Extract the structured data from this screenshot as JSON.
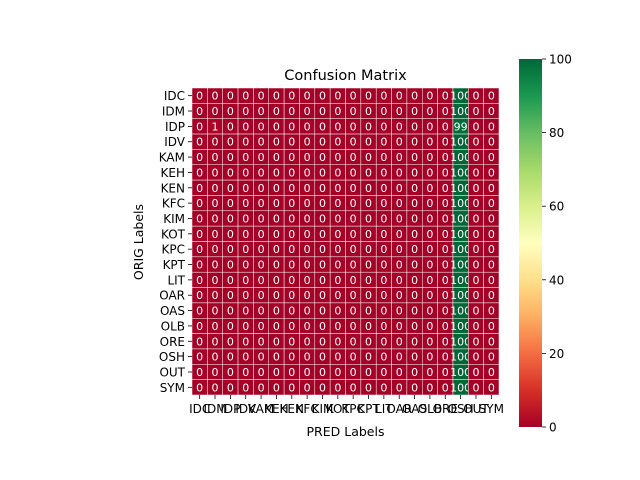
{
  "chart_data": {
    "type": "heatmap",
    "title": "Confusion Matrix",
    "xlabel": "PRED Labels",
    "ylabel": "ORIG Labels",
    "row_labels": [
      "IDC",
      "IDM",
      "IDP",
      "IDV",
      "KAM",
      "KEH",
      "KEN",
      "KFC",
      "KIM",
      "KOT",
      "KPC",
      "KPT",
      "LIT",
      "OAR",
      "OAS",
      "OLB",
      "ORE",
      "OSH",
      "OUT",
      "SYM"
    ],
    "col_labels": [
      "IDC",
      "IDM",
      "IDP",
      "IDV",
      "KAM",
      "KEH",
      "KEN",
      "KFC",
      "KIM",
      "KOT",
      "KPC",
      "KPT",
      "LIT",
      "OAR",
      "OAS",
      "OLB",
      "ORE",
      "OSH",
      "OUT",
      "SYM"
    ],
    "values": [
      [
        0,
        0,
        0,
        0,
        0,
        0,
        0,
        0,
        0,
        0,
        0,
        0,
        0,
        0,
        0,
        0,
        0,
        100,
        0,
        0
      ],
      [
        0,
        0,
        0,
        0,
        0,
        0,
        0,
        0,
        0,
        0,
        0,
        0,
        0,
        0,
        0,
        0,
        0,
        100,
        0,
        0
      ],
      [
        0,
        1,
        0,
        0,
        0,
        0,
        0,
        0,
        0,
        0,
        0,
        0,
        0,
        0,
        0,
        0,
        0,
        99,
        0,
        0
      ],
      [
        0,
        0,
        0,
        0,
        0,
        0,
        0,
        0,
        0,
        0,
        0,
        0,
        0,
        0,
        0,
        0,
        0,
        100,
        0,
        0
      ],
      [
        0,
        0,
        0,
        0,
        0,
        0,
        0,
        0,
        0,
        0,
        0,
        0,
        0,
        0,
        0,
        0,
        0,
        100,
        0,
        0
      ],
      [
        0,
        0,
        0,
        0,
        0,
        0,
        0,
        0,
        0,
        0,
        0,
        0,
        0,
        0,
        0,
        0,
        0,
        100,
        0,
        0
      ],
      [
        0,
        0,
        0,
        0,
        0,
        0,
        0,
        0,
        0,
        0,
        0,
        0,
        0,
        0,
        0,
        0,
        0,
        100,
        0,
        0
      ],
      [
        0,
        0,
        0,
        0,
        0,
        0,
        0,
        0,
        0,
        0,
        0,
        0,
        0,
        0,
        0,
        0,
        0,
        100,
        0,
        0
      ],
      [
        0,
        0,
        0,
        0,
        0,
        0,
        0,
        0,
        0,
        0,
        0,
        0,
        0,
        0,
        0,
        0,
        0,
        100,
        0,
        0
      ],
      [
        0,
        0,
        0,
        0,
        0,
        0,
        0,
        0,
        0,
        0,
        0,
        0,
        0,
        0,
        0,
        0,
        0,
        100,
        0,
        0
      ],
      [
        0,
        0,
        0,
        0,
        0,
        0,
        0,
        0,
        0,
        0,
        0,
        0,
        0,
        0,
        0,
        0,
        0,
        100,
        0,
        0
      ],
      [
        0,
        0,
        0,
        0,
        0,
        0,
        0,
        0,
        0,
        0,
        0,
        0,
        0,
        0,
        0,
        0,
        0,
        100,
        0,
        0
      ],
      [
        0,
        0,
        0,
        0,
        0,
        0,
        0,
        0,
        0,
        0,
        0,
        0,
        0,
        0,
        0,
        0,
        0,
        100,
        0,
        0
      ],
      [
        0,
        0,
        0,
        0,
        0,
        0,
        0,
        0,
        0,
        0,
        0,
        0,
        0,
        0,
        0,
        0,
        0,
        100,
        0,
        0
      ],
      [
        0,
        0,
        0,
        0,
        0,
        0,
        0,
        0,
        0,
        0,
        0,
        0,
        0,
        0,
        0,
        0,
        0,
        100,
        0,
        0
      ],
      [
        0,
        0,
        0,
        0,
        0,
        0,
        0,
        0,
        0,
        0,
        0,
        0,
        0,
        0,
        0,
        0,
        0,
        100,
        0,
        0
      ],
      [
        0,
        0,
        0,
        0,
        0,
        0,
        0,
        0,
        0,
        0,
        0,
        0,
        0,
        0,
        0,
        0,
        0,
        100,
        0,
        0
      ],
      [
        0,
        0,
        0,
        0,
        0,
        0,
        0,
        0,
        0,
        0,
        0,
        0,
        0,
        0,
        0,
        0,
        0,
        100,
        0,
        0
      ],
      [
        0,
        0,
        0,
        0,
        0,
        0,
        0,
        0,
        0,
        0,
        0,
        0,
        0,
        0,
        0,
        0,
        0,
        100,
        0,
        0
      ],
      [
        0,
        0,
        0,
        0,
        0,
        0,
        0,
        0,
        0,
        0,
        0,
        0,
        0,
        0,
        0,
        0,
        0,
        100,
        0,
        0
      ]
    ],
    "colormap": "RdYlGn",
    "vmin": 0,
    "vmax": 100,
    "colorbar_ticks": [
      0,
      20,
      40,
      60,
      80,
      100
    ],
    "cell_annotations": true,
    "grid_line_color": "#ffffff"
  }
}
